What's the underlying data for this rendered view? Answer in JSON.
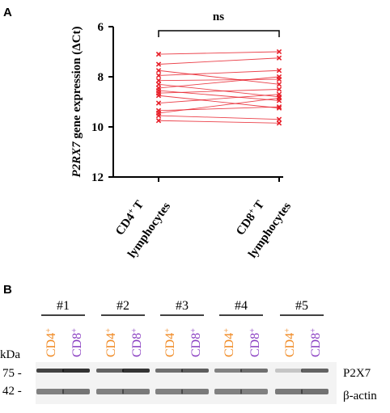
{
  "panel_a": {
    "label": "A",
    "significance": "ns",
    "ylabel_italic": "P2RX7",
    "ylabel_rest": " gene expression (ΔCt)",
    "cat1_line1": "CD4",
    "cat1_sup": "+",
    "cat1_line1_end": " T",
    "cat1_line2": "lymphocytes",
    "cat2_line1": "CD8",
    "cat2_sup": "+",
    "cat2_line1_end": " T",
    "cat2_line2": "lymphocytes"
  },
  "panel_b": {
    "label": "B",
    "kda_label": "kDa",
    "marker_75": "75 -",
    "marker_42": "42 -",
    "p2x7_label": "P2X7",
    "actin_label": "β-actin",
    "groups": [
      "#1",
      "#2",
      "#3",
      "#4",
      "#5"
    ],
    "lane_cd4": "CD4",
    "lane_cd8": "CD8",
    "lane_sup": "+",
    "cd4_color": "#f08a24",
    "cd8_color": "#8a3fc2",
    "p2x7_color": "#e8202a",
    "p2x7_band_intensity": [
      0.78,
      0.86,
      0.64,
      0.84,
      0.58,
      0.66,
      0.5,
      0.58,
      0.2,
      0.64
    ],
    "actin_band_intensity": [
      0.55,
      0.6,
      0.55,
      0.58,
      0.55,
      0.58,
      0.55,
      0.55,
      0.58,
      0.62
    ]
  },
  "chart_data": {
    "type": "line",
    "categories": [
      "CD4+ T lymphocytes",
      "CD8+ T lymphocytes"
    ],
    "ylabel": "P2RX7 gene expression (ΔCt)",
    "ylim": [
      12,
      6
    ],
    "y_inverted": true,
    "yticks": [
      6,
      8,
      10,
      12
    ],
    "marker": "x",
    "color": "#e8202a",
    "paired_values": [
      [
        7.1,
        7.0
      ],
      [
        7.5,
        7.25
      ],
      [
        7.75,
        8.3
      ],
      [
        7.95,
        7.75
      ],
      [
        8.15,
        8.1
      ],
      [
        8.3,
        8.8
      ],
      [
        8.45,
        8.0
      ],
      [
        8.55,
        8.95
      ],
      [
        8.65,
        8.5
      ],
      [
        8.75,
        9.25
      ],
      [
        9.05,
        8.7
      ],
      [
        9.35,
        9.2
      ],
      [
        9.45,
        8.85
      ],
      [
        9.55,
        9.7
      ],
      [
        9.75,
        9.85
      ]
    ]
  }
}
